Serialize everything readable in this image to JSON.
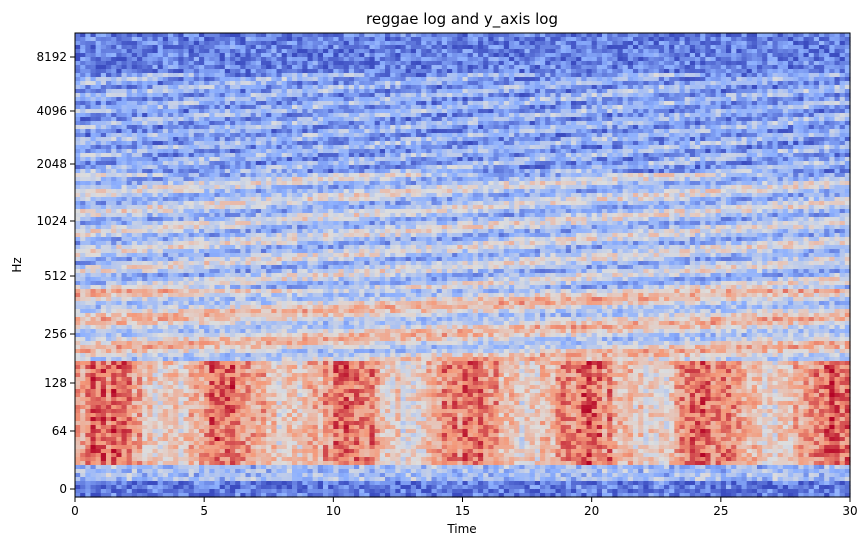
{
  "chart_data": {
    "type": "heatmap",
    "title": "reggae log and y_axis log",
    "xlabel": "Time",
    "ylabel": "Hz",
    "xlim": [
      0,
      30
    ],
    "y_scale": "symlog",
    "x_ticks": [
      0,
      5,
      10,
      15,
      20,
      25,
      30
    ],
    "x_tick_labels": [
      "0",
      "5",
      "10",
      "15",
      "20",
      "25",
      "30"
    ],
    "y_ticks": [
      0,
      64,
      128,
      256,
      512,
      1024,
      2048,
      4096,
      8192
    ],
    "y_tick_labels": [
      "0",
      "64",
      "128",
      "256",
      "512",
      "1024",
      "2048",
      "4096",
      "8192"
    ],
    "colormap": "coolwarm",
    "colormap_stops": [
      "#3b4cc0",
      "#8db0fe",
      "#dddddd",
      "#f49a7b",
      "#b40426"
    ],
    "grid": false
  }
}
